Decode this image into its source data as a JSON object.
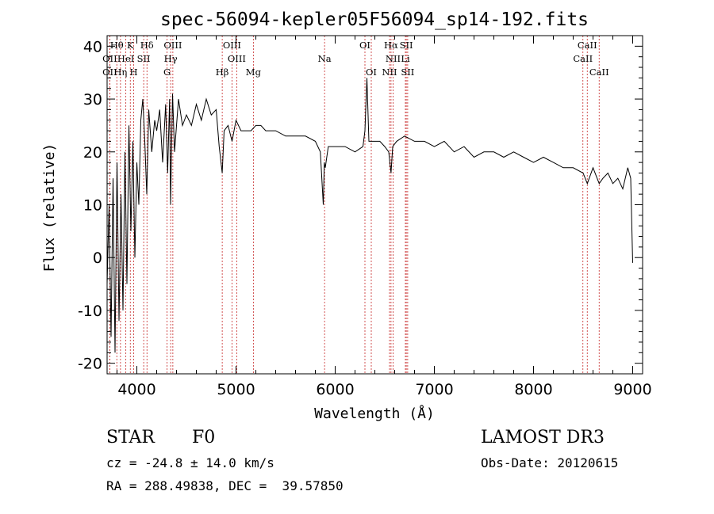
{
  "chart_data": {
    "type": "line",
    "title": "spec-56094-kepler05F56094_sp14-192.fits",
    "xlabel": "Wavelength (Å)",
    "ylabel": "Flux (relative)",
    "xlim": [
      3700,
      9100
    ],
    "ylim": [
      -22,
      42
    ],
    "xticks": [
      4000,
      5000,
      6000,
      7000,
      8000,
      9000
    ],
    "yticks": [
      -20,
      -10,
      0,
      10,
      20,
      30,
      40
    ],
    "series": [
      {
        "name": "flux",
        "x": [
          3700,
          3720,
          3740,
          3760,
          3780,
          3800,
          3820,
          3840,
          3860,
          3880,
          3900,
          3920,
          3940,
          3960,
          3980,
          4000,
          4020,
          4040,
          4060,
          4080,
          4100,
          4120,
          4150,
          4180,
          4200,
          4230,
          4260,
          4290,
          4310,
          4330,
          4340,
          4360,
          4380,
          4420,
          4460,
          4500,
          4550,
          4600,
          4650,
          4700,
          4750,
          4800,
          4830,
          4861,
          4880,
          4920,
          4960,
          5000,
          5050,
          5100,
          5150,
          5200,
          5250,
          5300,
          5400,
          5500,
          5600,
          5700,
          5800,
          5850,
          5880,
          5890,
          5900,
          5930,
          6000,
          6100,
          6200,
          6280,
          6300,
          6320,
          6340,
          6400,
          6450,
          6500,
          6540,
          6563,
          6580,
          6620,
          6700,
          6800,
          6900,
          7000,
          7100,
          7200,
          7300,
          7400,
          7500,
          7600,
          7700,
          7800,
          7900,
          8000,
          8100,
          8200,
          8300,
          8400,
          8500,
          8542,
          8600,
          8662,
          8700,
          8750,
          8800,
          8850,
          8900,
          8950,
          8980,
          9000
        ],
        "y": [
          -5,
          10,
          -15,
          15,
          -18,
          18,
          -12,
          12,
          -10,
          20,
          -5,
          25,
          5,
          22,
          0,
          18,
          10,
          26,
          30,
          22,
          12,
          28,
          20,
          26,
          24,
          28,
          18,
          29,
          16,
          30,
          10,
          31,
          20,
          30,
          25,
          27,
          25,
          29,
          26,
          30,
          27,
          28,
          21,
          16,
          24,
          25,
          22,
          26,
          24,
          24,
          24,
          25,
          25,
          24,
          24,
          23,
          23,
          23,
          22,
          20,
          10,
          18,
          17,
          21,
          21,
          21,
          20,
          21,
          24,
          34,
          22,
          22,
          22,
          21,
          20,
          16,
          21,
          22,
          23,
          22,
          22,
          21,
          22,
          20,
          21,
          19,
          20,
          20,
          19,
          20,
          19,
          18,
          19,
          18,
          17,
          17,
          16,
          14,
          17,
          14,
          15,
          16,
          14,
          15,
          13,
          17,
          15,
          -1
        ]
      }
    ],
    "annotations": [
      {
        "label": "Hθ",
        "x": 3798,
        "row": 1
      },
      {
        "label": "K",
        "x": 3934,
        "row": 1
      },
      {
        "label": "Hδ",
        "x": 4102,
        "row": 1
      },
      {
        "label": "OIII",
        "x": 4363,
        "row": 1
      },
      {
        "label": "OIII",
        "x": 4959,
        "row": 1
      },
      {
        "label": "OI",
        "x": 6300,
        "row": 1
      },
      {
        "label": "Hα",
        "x": 6563,
        "row": 1
      },
      {
        "label": "SII",
        "x": 6717,
        "row": 1
      },
      {
        "label": "CaII",
        "x": 8542,
        "row": 1
      },
      {
        "label": "OII",
        "x": 3727,
        "row": 2
      },
      {
        "label": "HeI",
        "x": 3889,
        "row": 2
      },
      {
        "label": "SII",
        "x": 4069,
        "row": 2
      },
      {
        "label": "Hγ",
        "x": 4341,
        "row": 2
      },
      {
        "label": "OIII",
        "x": 5007,
        "row": 2
      },
      {
        "label": "Na",
        "x": 5893,
        "row": 2
      },
      {
        "label": "NII",
        "x": 6584,
        "row": 2
      },
      {
        "label": "Li",
        "x": 6708,
        "row": 2
      },
      {
        "label": "CaII",
        "x": 8498,
        "row": 2
      },
      {
        "label": "OII",
        "x": 3727,
        "row": 3
      },
      {
        "label": "Hη",
        "x": 3835,
        "row": 3
      },
      {
        "label": "H",
        "x": 3968,
        "row": 3
      },
      {
        "label": "G",
        "x": 4305,
        "row": 3
      },
      {
        "label": "Hβ",
        "x": 4861,
        "row": 3
      },
      {
        "label": "Mg",
        "x": 5175,
        "row": 3
      },
      {
        "label": "OI",
        "x": 6364,
        "row": 3
      },
      {
        "label": "NII",
        "x": 6548,
        "row": 3
      },
      {
        "label": "SII",
        "x": 6731,
        "row": 3
      },
      {
        "label": "CaII",
        "x": 8662,
        "row": 3
      }
    ]
  },
  "info": {
    "object_class": "STAR",
    "subclass": "F0",
    "survey": "LAMOST DR3",
    "cz": "cz = -24.8 ± 14.0 km/s",
    "obs_date": "Obs-Date: 20120615",
    "coords": "RA = 288.49838, DEC =  39.57850"
  }
}
